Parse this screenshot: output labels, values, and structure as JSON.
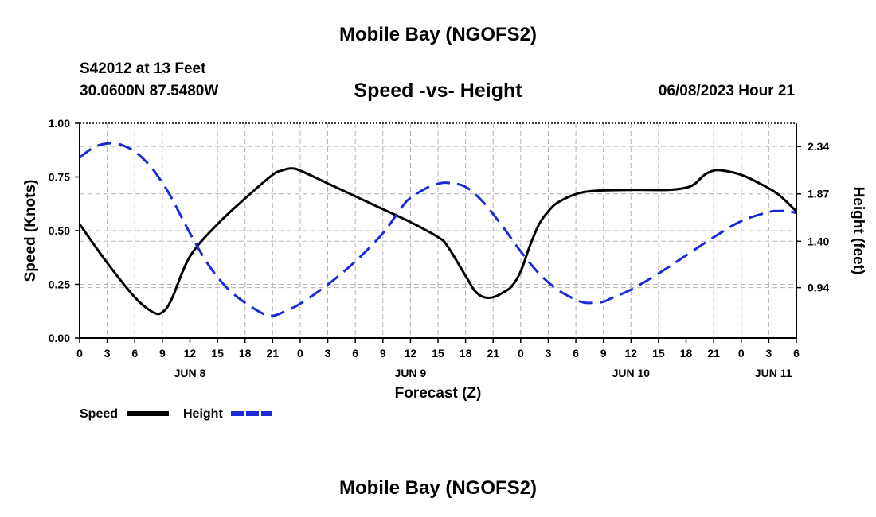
{
  "header": {
    "main_title": "Mobile Bay (NGOFS2)",
    "station": "S42012 at 13 Feet",
    "coords": "30.0600N  87.5480W",
    "subtitle": "Speed -vs- Height",
    "datetime": "06/08/2023 Hour 21"
  },
  "footer": {
    "title": "Mobile Bay (NGOFS2)"
  },
  "chart_data": {
    "type": "line",
    "title": "Speed -vs- Height",
    "xlabel": "Forecast (Z)",
    "ylabel": "Speed (Knots)",
    "y2label": "Height (feet)",
    "x_unit": "hours since 2023-06-08 00Z",
    "xlim": [
      0,
      78
    ],
    "ylim": [
      0,
      1.0
    ],
    "y2lim": [
      0.44,
      2.57
    ],
    "grid": true,
    "legend_position": "bottom-left",
    "x_ticks": [
      {
        "hour": 0,
        "label": "0"
      },
      {
        "hour": 3,
        "label": "3"
      },
      {
        "hour": 6,
        "label": "6"
      },
      {
        "hour": 9,
        "label": "9"
      },
      {
        "hour": 12,
        "label": "12"
      },
      {
        "hour": 15,
        "label": "15"
      },
      {
        "hour": 18,
        "label": "18"
      },
      {
        "hour": 21,
        "label": "21"
      },
      {
        "hour": 24,
        "label": "0"
      },
      {
        "hour": 27,
        "label": "3"
      },
      {
        "hour": 30,
        "label": "6"
      },
      {
        "hour": 33,
        "label": "9"
      },
      {
        "hour": 36,
        "label": "12"
      },
      {
        "hour": 39,
        "label": "15"
      },
      {
        "hour": 42,
        "label": "18"
      },
      {
        "hour": 45,
        "label": "21"
      },
      {
        "hour": 48,
        "label": "0"
      },
      {
        "hour": 51,
        "label": "3"
      },
      {
        "hour": 54,
        "label": "6"
      },
      {
        "hour": 57,
        "label": "9"
      },
      {
        "hour": 60,
        "label": "12"
      },
      {
        "hour": 63,
        "label": "15"
      },
      {
        "hour": 66,
        "label": "18"
      },
      {
        "hour": 69,
        "label": "21"
      },
      {
        "hour": 72,
        "label": "0"
      },
      {
        "hour": 75,
        "label": "3"
      },
      {
        "hour": 78,
        "label": "6"
      }
    ],
    "day_labels": [
      {
        "hour": 12,
        "label": "JUN 8"
      },
      {
        "hour": 36,
        "label": "JUN 9"
      },
      {
        "hour": 60,
        "label": "JUN 10"
      },
      {
        "hour": 75.5,
        "label": "JUN 11"
      }
    ],
    "y_ticks": [
      {
        "value": 0.0,
        "label": "0.00"
      },
      {
        "value": 0.25,
        "label": "0.25"
      },
      {
        "value": 0.5,
        "label": "0.50"
      },
      {
        "value": 0.75,
        "label": "0.75"
      },
      {
        "value": 1.0,
        "label": "1.00"
      }
    ],
    "y2_ticks": [
      {
        "value": 0.94,
        "label": "0.94"
      },
      {
        "value": 1.4,
        "label": "1.40"
      },
      {
        "value": 1.87,
        "label": "1.87"
      },
      {
        "value": 2.34,
        "label": "2.34"
      }
    ],
    "series": [
      {
        "name": "Speed",
        "axis": "left",
        "color": "#000000",
        "dash": "solid",
        "x": [
          0,
          3,
          6,
          8,
          9,
          10,
          12,
          15,
          18,
          21,
          22,
          23,
          24,
          27,
          30,
          33,
          36,
          39,
          40,
          42,
          43,
          44,
          45,
          46,
          47,
          48,
          49,
          50,
          51,
          52,
          54,
          56,
          60,
          64,
          66,
          67,
          68,
          69,
          70,
          72,
          74,
          76,
          78
        ],
        "values": [
          0.53,
          0.35,
          0.19,
          0.12,
          0.12,
          0.18,
          0.38,
          0.53,
          0.65,
          0.76,
          0.78,
          0.79,
          0.78,
          0.72,
          0.66,
          0.6,
          0.54,
          0.47,
          0.43,
          0.29,
          0.22,
          0.19,
          0.19,
          0.21,
          0.24,
          0.31,
          0.43,
          0.53,
          0.59,
          0.63,
          0.67,
          0.685,
          0.69,
          0.69,
          0.7,
          0.72,
          0.76,
          0.78,
          0.78,
          0.76,
          0.72,
          0.67,
          0.59
        ]
      },
      {
        "name": "Height",
        "axis": "right",
        "color": "#1a2bd6",
        "dash": "dashed",
        "x": [
          0,
          1,
          2,
          3,
          4,
          5,
          6,
          7,
          8,
          9,
          10,
          12,
          14,
          16,
          18,
          20,
          21,
          22,
          24,
          27,
          30,
          33,
          35,
          36,
          38,
          39,
          40,
          42,
          44,
          46,
          48,
          50,
          52,
          54,
          55,
          56,
          57,
          58,
          60,
          63,
          66,
          69,
          72,
          75,
          76,
          77,
          78
        ],
        "values": [
          2.23,
          2.3,
          2.35,
          2.37,
          2.37,
          2.34,
          2.29,
          2.21,
          2.11,
          1.98,
          1.83,
          1.48,
          1.17,
          0.94,
          0.79,
          0.68,
          0.66,
          0.69,
          0.78,
          0.97,
          1.2,
          1.48,
          1.73,
          1.83,
          1.94,
          1.97,
          1.98,
          1.94,
          1.78,
          1.55,
          1.3,
          1.08,
          0.92,
          0.82,
          0.79,
          0.79,
          0.8,
          0.84,
          0.92,
          1.08,
          1.26,
          1.44,
          1.6,
          1.69,
          1.7,
          1.7,
          1.68
        ]
      }
    ]
  }
}
